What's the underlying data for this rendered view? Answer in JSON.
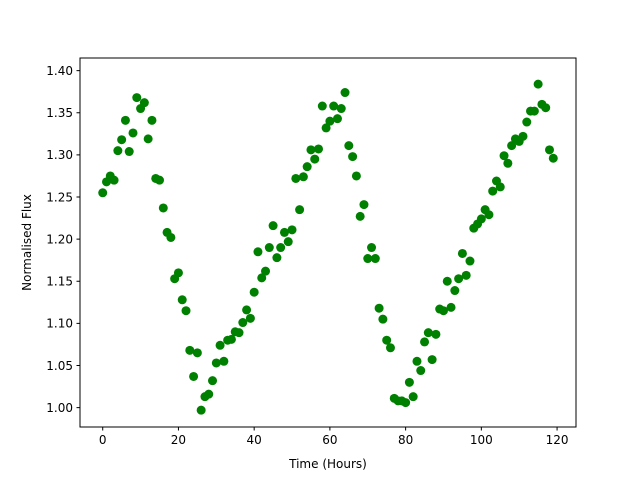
{
  "chart_data": {
    "type": "scatter",
    "title": "",
    "xlabel": "Time (Hours)",
    "ylabel": "Normalised Flux",
    "xlim": [
      -6,
      125
    ],
    "ylim": [
      0.977,
      1.415
    ],
    "xticks": [
      0,
      20,
      40,
      60,
      80,
      100,
      120
    ],
    "yticks": [
      1.0,
      1.05,
      1.1,
      1.15,
      1.2,
      1.25,
      1.3,
      1.35,
      1.4
    ],
    "xtick_labels": [
      "0",
      "20",
      "40",
      "60",
      "80",
      "100",
      "120"
    ],
    "ytick_labels": [
      "1.00",
      "1.05",
      "1.10",
      "1.15",
      "1.20",
      "1.25",
      "1.30",
      "1.35",
      "1.40"
    ],
    "grid": false,
    "marker_color": "#008000",
    "x": [
      0,
      1,
      2,
      3,
      4,
      5,
      6,
      7,
      8,
      9,
      10,
      11,
      12,
      13,
      14,
      15,
      16,
      17,
      18,
      19,
      20,
      21,
      22,
      23,
      24,
      25,
      26,
      27,
      28,
      29,
      30,
      31,
      32,
      33,
      34,
      35,
      36,
      37,
      38,
      39,
      40,
      41,
      42,
      43,
      44,
      45,
      46,
      47,
      48,
      49,
      50,
      51,
      52,
      53,
      54,
      55,
      56,
      57,
      58,
      59,
      60,
      61,
      62,
      63,
      64,
      65,
      66,
      67,
      68,
      69,
      70,
      71,
      72,
      73,
      74,
      75,
      76,
      77,
      78,
      79,
      80,
      81,
      82,
      83,
      84,
      85,
      86,
      87,
      88,
      89,
      90,
      91,
      92,
      93,
      94,
      95,
      96,
      97,
      98,
      99,
      100,
      101,
      102,
      103,
      104,
      105,
      106,
      107,
      108,
      109,
      110,
      111,
      112,
      113,
      114,
      115,
      116,
      117,
      118,
      119
    ],
    "y": [
      1.255,
      1.268,
      1.275,
      1.27,
      1.305,
      1.318,
      1.341,
      1.304,
      1.326,
      1.368,
      1.355,
      1.362,
      1.319,
      1.341,
      1.272,
      1.27,
      1.237,
      1.208,
      1.202,
      1.153,
      1.16,
      1.128,
      1.115,
      1.068,
      1.037,
      1.065,
      0.997,
      1.013,
      1.016,
      1.032,
      1.053,
      1.074,
      1.055,
      1.08,
      1.081,
      1.09,
      1.089,
      1.101,
      1.116,
      1.106,
      1.137,
      1.185,
      1.154,
      1.162,
      1.19,
      1.216,
      1.178,
      1.19,
      1.208,
      1.197,
      1.211,
      1.272,
      1.235,
      1.274,
      1.286,
      1.306,
      1.295,
      1.307,
      1.358,
      1.332,
      1.34,
      1.358,
      1.343,
      1.355,
      1.374,
      1.311,
      1.298,
      1.275,
      1.227,
      1.241,
      1.177,
      1.19,
      1.177,
      1.118,
      1.105,
      1.08,
      1.071,
      1.011,
      1.008,
      1.008,
      1.006,
      1.03,
      1.013,
      1.055,
      1.044,
      1.078,
      1.089,
      1.057,
      1.087,
      1.117,
      1.115,
      1.15,
      1.119,
      1.139,
      1.153,
      1.183,
      1.157,
      1.174,
      1.213,
      1.218,
      1.224,
      1.235,
      1.229,
      1.257,
      1.269,
      1.262,
      1.299,
      1.29,
      1.311,
      1.319,
      1.316,
      1.322,
      1.339,
      1.352,
      1.352,
      1.384,
      1.36,
      1.356,
      1.306,
      1.296
    ]
  }
}
